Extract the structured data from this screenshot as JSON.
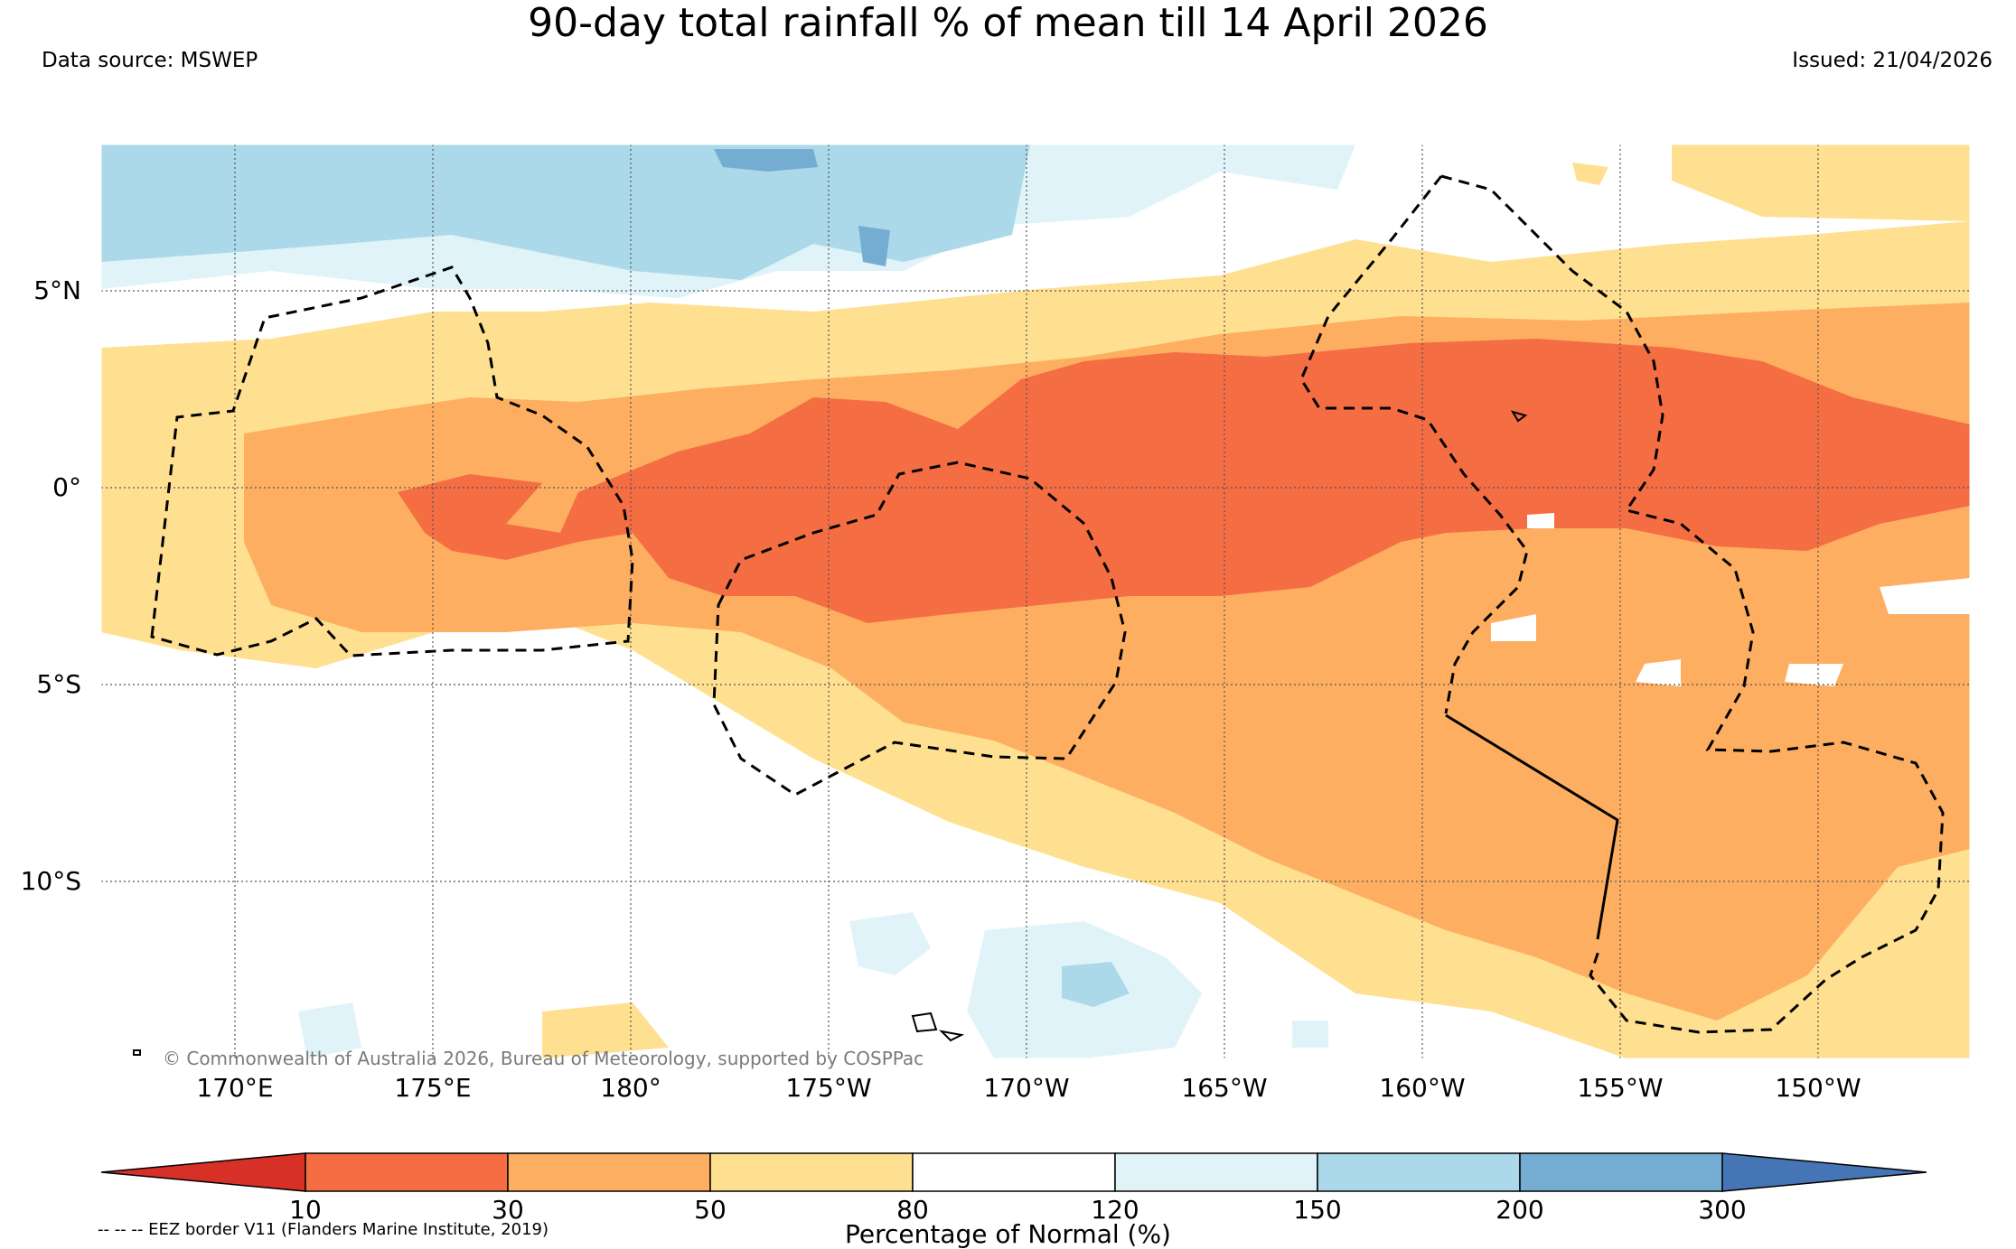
{
  "header": {
    "title": "90-day total rainfall % of mean till 14 April 2026",
    "source": "Data source: MSWEP",
    "issued": "Issued: 21/04/2026"
  },
  "map": {
    "lat_labels": [
      "5°N",
      "0°",
      "5°S",
      "10°S"
    ],
    "lon_labels": [
      "170°E",
      "175°E",
      "180°",
      "175°W",
      "170°W",
      "165°W",
      "160°W",
      "155°W",
      "150°W"
    ],
    "credit": "© Commonwealth of Australia 2026, Bureau of Meteorology, supported by COSPPac"
  },
  "colorbar": {
    "title": "Percentage of Normal (%)",
    "tick_labels": [
      "10",
      "30",
      "50",
      "80",
      "120",
      "150",
      "200",
      "300"
    ],
    "colors": [
      "#d73027",
      "#f46d43",
      "#fdae61",
      "#fee090",
      "#ffffff",
      "#e0f3f8",
      "#abd9e9",
      "#74add1",
      "#4575b4"
    ]
  },
  "legend_note": "-- -- -- EEZ border V11 (Flanders Marine Institute, 2019)"
}
